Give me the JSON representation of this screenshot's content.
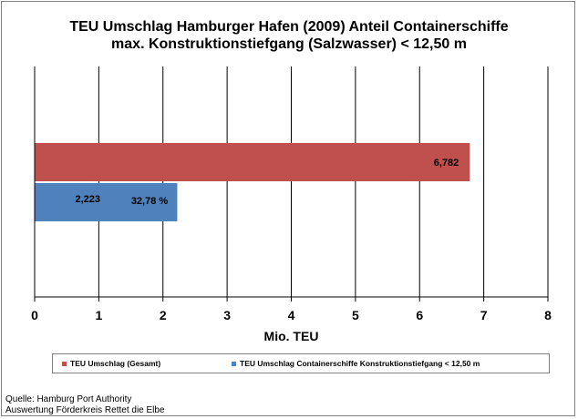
{
  "title": {
    "line1": "TEU Umschlag Hamburger Hafen (2009)  Anteil Containerschiffe",
    "line2": "max. Konstruktionstiefgang (Salzwasser) < 12,50 m"
  },
  "colors": {
    "series1": "#c0504d",
    "series2": "#4f81bd",
    "grid": "#000000"
  },
  "chart_data": {
    "type": "bar",
    "orientation": "horizontal",
    "xlabel": "Mio. TEU",
    "xlim": [
      0,
      8
    ],
    "xticks": [
      "0",
      "1",
      "2",
      "3",
      "4",
      "5",
      "6",
      "7",
      "8"
    ],
    "grid": "vertical major gridlines",
    "legend": "bottom",
    "series": [
      {
        "name": "TEU Umschlag (Gesamt)",
        "value": 6.782,
        "label": "6,782",
        "color": "#c0504d"
      },
      {
        "name": "TEU Umschlag Containerschiffe Konstruktionstiefgang < 12,50 m",
        "value": 2.223,
        "label": "2,223",
        "color": "#4f81bd",
        "extra_label": "32,78 %"
      }
    ]
  },
  "source": {
    "line1": "Quelle: Hamburg Port Authority",
    "line2": "Auswertung Förderkreis Rettet die Elbe"
  }
}
